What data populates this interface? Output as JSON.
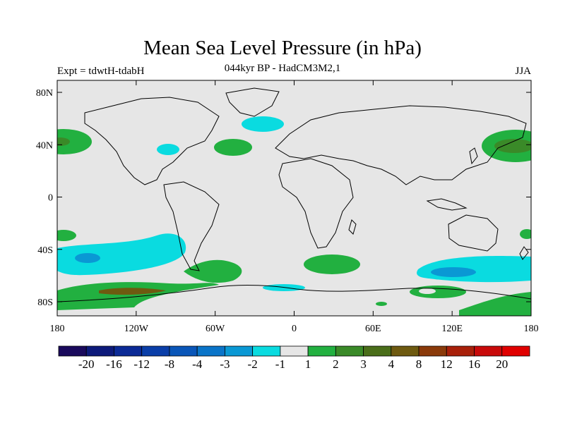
{
  "title": "Mean Sea Level Pressure (in hPa)",
  "subtitle_left": "Expt = tdwtH-tdabH",
  "subtitle_center": "044kyr BP - HadCM3M2,1",
  "subtitle_right": "JJA",
  "y_ticks": [
    "80N",
    "40N",
    "0",
    "40S",
    "80S"
  ],
  "x_ticks": [
    "180",
    "120W",
    "60W",
    "0",
    "60E",
    "120E",
    "180"
  ],
  "colorbar": {
    "colors": [
      "#1a0a5c",
      "#0d1a7a",
      "#0b2a96",
      "#0a3ea8",
      "#0a56b8",
      "#0a74c8",
      "#0a98d4",
      "#0adbe0",
      "#e6e6e6",
      "#22b040",
      "#3a8a28",
      "#4a6e1a",
      "#6e5a10",
      "#8a3a0a",
      "#a8200a",
      "#c80a0a",
      "#e00000"
    ],
    "labels": [
      "-20",
      "-16",
      "-12",
      "-8",
      "-4",
      "-3",
      "-2",
      "-1",
      "1",
      "2",
      "3",
      "4",
      "8",
      "12",
      "16",
      "20"
    ]
  },
  "background_color": "#e6e6e6"
}
